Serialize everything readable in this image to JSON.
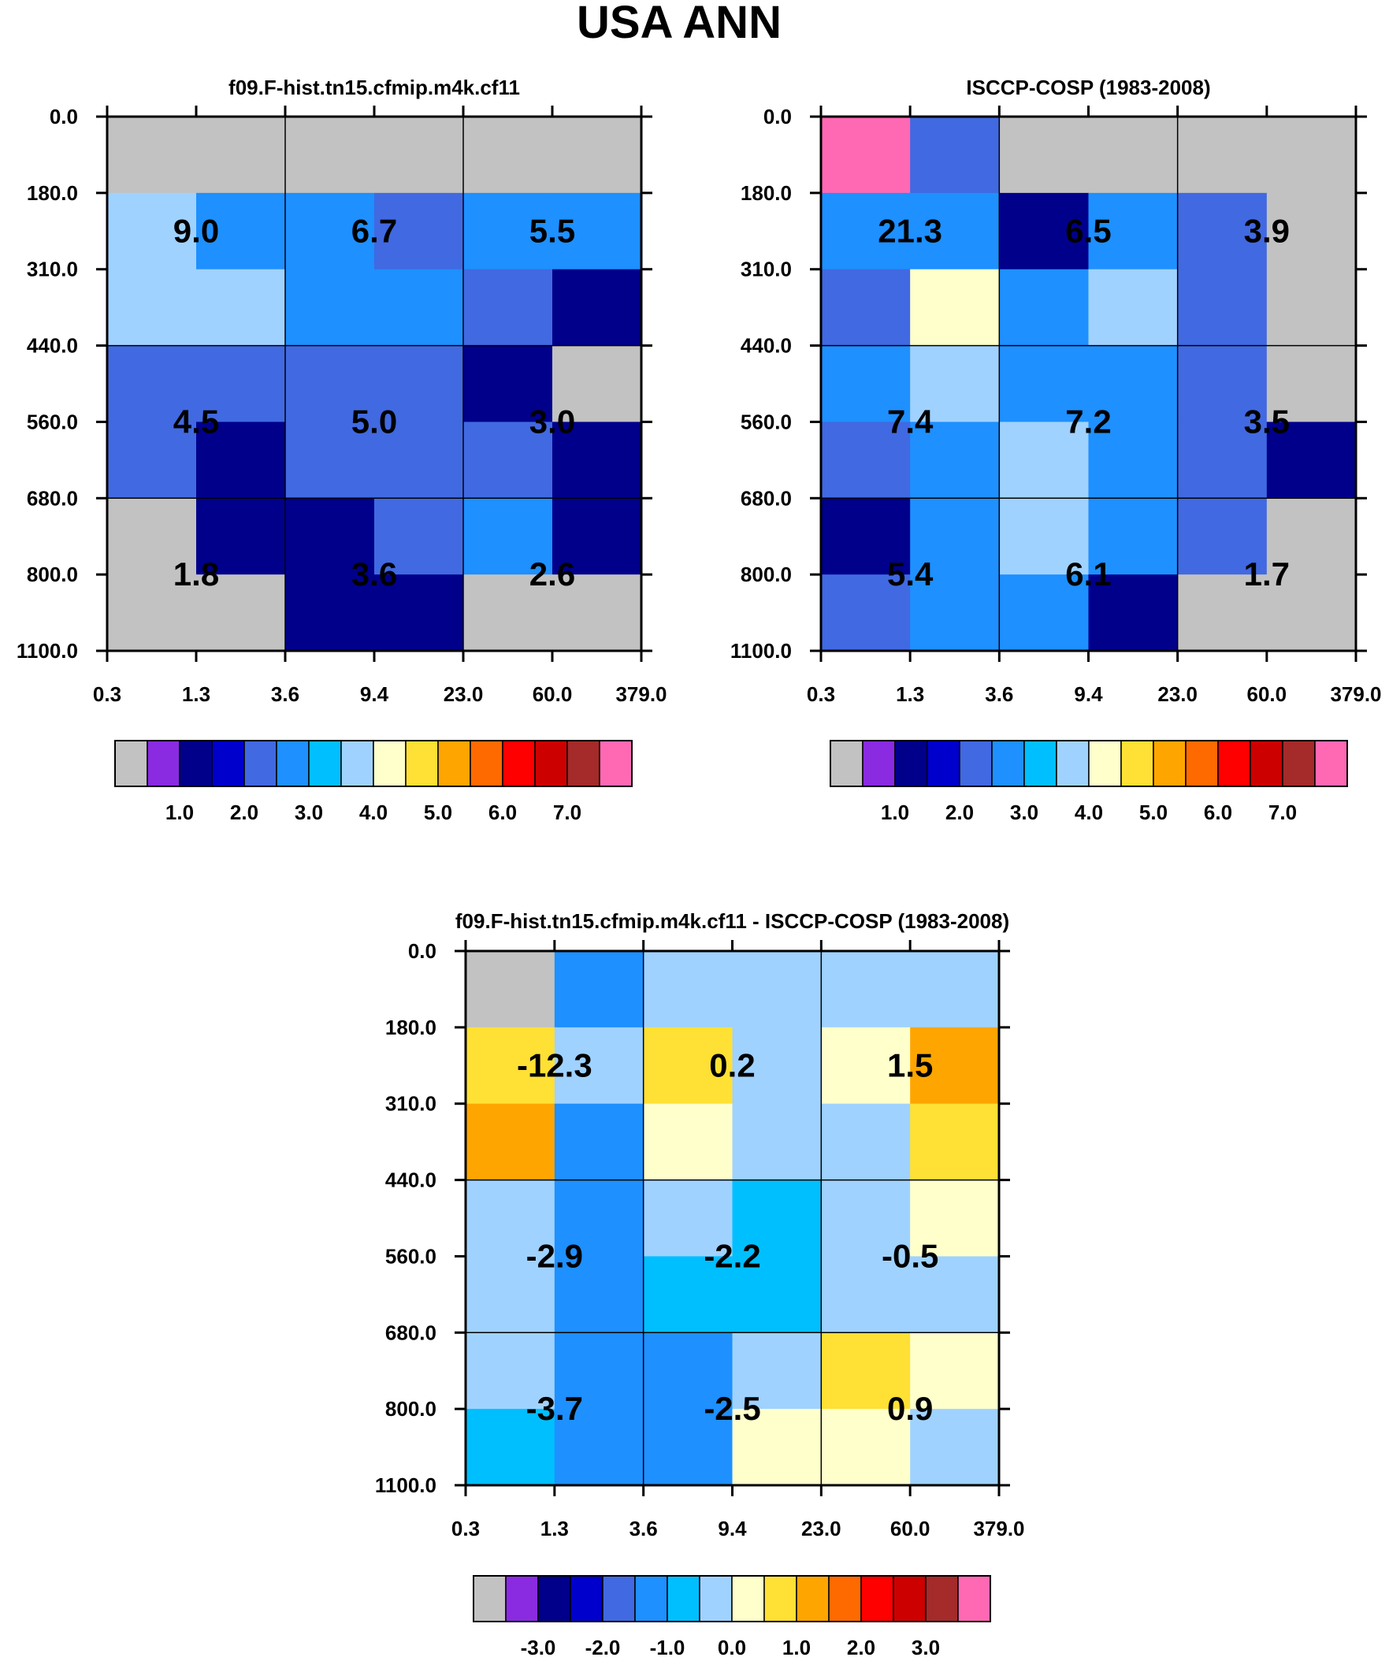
{
  "chart_data": {
    "type": "heatmap",
    "title": "USA ANN",
    "panels": [
      {
        "id": "model",
        "title": "f09.F-hist.tn15.cfmip.m4k.cf11",
        "x_ticks": [
          "0.3",
          "1.3",
          "3.6",
          "9.4",
          "23.0",
          "60.0",
          "379.0"
        ],
        "y_ticks": [
          "0.0",
          "180.0",
          "310.0",
          "440.0",
          "560.0",
          "680.0",
          "800.0",
          "1100.0"
        ],
        "cells": [
          [
            -0.5,
            -0.5,
            -0.5,
            -0.5,
            -0.5,
            -0.5
          ],
          [
            3.0,
            2.0,
            2.0,
            1.5,
            2.0,
            2.0
          ],
          [
            3.0,
            3.0,
            2.0,
            2.0,
            1.5,
            0.8
          ],
          [
            1.5,
            1.5,
            1.5,
            1.5,
            0.8,
            -0.5
          ],
          [
            1.5,
            0.8,
            1.5,
            1.5,
            1.5,
            0.8
          ],
          [
            -0.5,
            0.8,
            0.8,
            1.5,
            2.0,
            0.8
          ],
          [
            -0.5,
            -0.5,
            0.8,
            0.8,
            -0.5,
            -0.5
          ]
        ],
        "group_labels": [
          [
            "9.0",
            "6.7",
            "5.5"
          ],
          [
            "4.5",
            "5.0",
            "3.0"
          ],
          [
            "1.8",
            "3.6",
            "2.6"
          ]
        ],
        "colorbar": {
          "colors": [
            "#c2c2c2",
            "#8a2be2",
            "#00008b",
            "#0000cd",
            "#4169e1",
            "#1e90ff",
            "#00bfff",
            "#a0d2ff",
            "#ffffcc",
            "#ffe034",
            "#ffa500",
            "#ff6a00",
            "#ff0000",
            "#cd0000",
            "#a52a2a",
            "#ff69b4"
          ],
          "tick_labels": [
            "1.0",
            "2.0",
            "3.0",
            "4.0",
            "5.0",
            "6.0",
            "7.0"
          ],
          "tick_boundaries": [
            2,
            4,
            6,
            8,
            10,
            12,
            14
          ]
        }
      },
      {
        "id": "obs",
        "title": "ISCCP-COSP (1983-2008)",
        "x_ticks": [
          "0.3",
          "1.3",
          "3.6",
          "9.4",
          "23.0",
          "60.0",
          "379.0"
        ],
        "y_ticks": [
          "0.0",
          "180.0",
          "310.0",
          "440.0",
          "560.0",
          "680.0",
          "800.0",
          "1100.0"
        ],
        "cells": [
          [
            7.5,
            1.5,
            -0.5,
            -0.5,
            -0.5,
            -0.5
          ],
          [
            2.0,
            2.0,
            0.8,
            2.0,
            1.5,
            -0.5
          ],
          [
            1.5,
            3.5,
            2.0,
            3.0,
            1.5,
            -0.5
          ],
          [
            2.0,
            3.0,
            2.0,
            2.0,
            1.5,
            -0.5
          ],
          [
            1.5,
            2.0,
            3.0,
            2.0,
            1.5,
            0.8
          ],
          [
            0.8,
            2.0,
            3.0,
            2.0,
            1.5,
            -0.5
          ],
          [
            1.5,
            2.0,
            2.0,
            0.8,
            -0.5,
            -0.5
          ]
        ],
        "group_labels": [
          [
            "21.3",
            "6.5",
            "3.9"
          ],
          [
            "7.4",
            "7.2",
            "3.5"
          ],
          [
            "5.4",
            "6.1",
            "1.7"
          ]
        ],
        "colorbar": {
          "colors": [
            "#c2c2c2",
            "#8a2be2",
            "#00008b",
            "#0000cd",
            "#4169e1",
            "#1e90ff",
            "#00bfff",
            "#a0d2ff",
            "#ffffcc",
            "#ffe034",
            "#ffa500",
            "#ff6a00",
            "#ff0000",
            "#cd0000",
            "#a52a2a",
            "#ff69b4"
          ],
          "tick_labels": [
            "1.0",
            "2.0",
            "3.0",
            "4.0",
            "5.0",
            "6.0",
            "7.0"
          ],
          "tick_boundaries": [
            2,
            4,
            6,
            8,
            10,
            12,
            14
          ]
        }
      },
      {
        "id": "diff",
        "title": "f09.F-hist.tn15.cfmip.m4k.cf11 - ISCCP-COSP (1983-2008)",
        "x_ticks": [
          "0.3",
          "1.3",
          "3.6",
          "9.4",
          "23.0",
          "60.0",
          "379.0"
        ],
        "y_ticks": [
          "0.0",
          "180.0",
          "310.0",
          "440.0",
          "560.0",
          "680.0",
          "800.0",
          "1100.0"
        ],
        "cells": [
          [
            -4.0,
            -1.5,
            -0.3,
            -0.3,
            -0.3,
            -0.3
          ],
          [
            0.8,
            -0.3,
            0.8,
            -0.3,
            0.2,
            1.3
          ],
          [
            1.3,
            -1.5,
            0.2,
            -0.3,
            -0.3,
            0.8
          ],
          [
            -0.3,
            -1.5,
            -0.3,
            -0.8,
            -0.3,
            0.2
          ],
          [
            -0.3,
            -1.5,
            -0.8,
            -0.8,
            -0.3,
            -0.3
          ],
          [
            -0.3,
            -1.5,
            -1.5,
            -0.3,
            0.8,
            0.2
          ],
          [
            -0.8,
            -1.5,
            -1.5,
            0.2,
            0.2,
            -0.3
          ]
        ],
        "group_labels": [
          [
            "-12.3",
            "0.2",
            "1.5"
          ],
          [
            "-2.9",
            "-2.2",
            "-0.5"
          ],
          [
            "-3.7",
            "-2.5",
            "0.9"
          ]
        ],
        "colorbar": {
          "colors": [
            "#c2c2c2",
            "#8a2be2",
            "#00008b",
            "#0000cd",
            "#4169e1",
            "#1e90ff",
            "#00bfff",
            "#a0d2ff",
            "#ffffcc",
            "#ffe034",
            "#ffa500",
            "#ff6a00",
            "#ff0000",
            "#cd0000",
            "#a52a2a",
            "#ff69b4"
          ],
          "tick_labels": [
            "-3.0",
            "-2.0",
            "-1.0",
            "0.0",
            "1.0",
            "2.0",
            "3.0"
          ],
          "tick_boundaries": [
            2,
            4,
            6,
            8,
            10,
            12,
            14
          ]
        }
      }
    ]
  },
  "value_to_color": {
    "model_obs_levels": [
      0.0,
      0.5,
      1.0,
      1.5,
      2.0,
      2.5,
      3.0,
      3.5,
      4.0,
      4.5,
      5.0,
      5.5,
      6.0,
      6.5,
      7.0
    ],
    "diff_levels": [
      -3.5,
      -3.0,
      -2.5,
      -2.0,
      -1.5,
      -1.0,
      -0.5,
      0.0,
      0.5,
      1.0,
      1.5,
      2.0,
      2.5,
      3.0,
      3.5
    ]
  }
}
